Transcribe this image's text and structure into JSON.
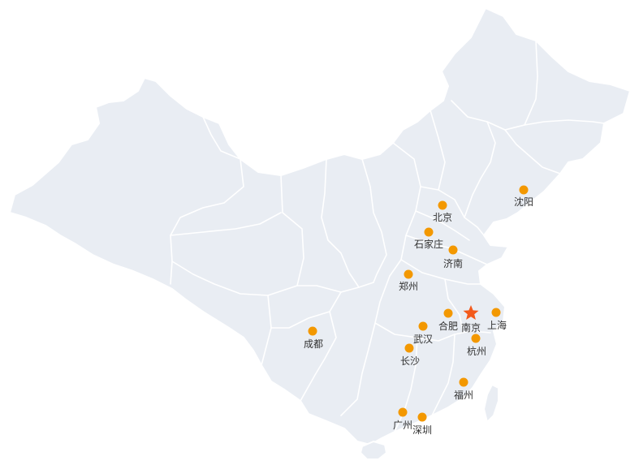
{
  "map": {
    "colors": {
      "land": "#e9edf3",
      "border": "#ffffff",
      "city_dot": "#f39800",
      "capital_star": "#f35a1c",
      "label": "#333333"
    },
    "cities": [
      {
        "key": "beijing",
        "name": "北京",
        "marker": "dot"
      },
      {
        "key": "shenyang",
        "name": "沈阳",
        "marker": "dot"
      },
      {
        "key": "shijiazhuang",
        "name": "石家庄",
        "marker": "dot"
      },
      {
        "key": "jinan",
        "name": "济南",
        "marker": "dot"
      },
      {
        "key": "zhengzhou",
        "name": "郑州",
        "marker": "dot"
      },
      {
        "key": "hefei",
        "name": "合肥",
        "marker": "dot"
      },
      {
        "key": "nanjing",
        "name": "南京",
        "marker": "star"
      },
      {
        "key": "shanghai",
        "name": "上海",
        "marker": "dot"
      },
      {
        "key": "wuhan",
        "name": "武汉",
        "marker": "dot"
      },
      {
        "key": "hangzhou",
        "name": "杭州",
        "marker": "dot"
      },
      {
        "key": "chengdu",
        "name": "成都",
        "marker": "dot"
      },
      {
        "key": "changsha",
        "name": "长沙",
        "marker": "dot"
      },
      {
        "key": "fuzhou",
        "name": "福州",
        "marker": "dot"
      },
      {
        "key": "guangzhou",
        "name": "广州",
        "marker": "dot"
      },
      {
        "key": "shenzhen",
        "name": "深圳",
        "marker": "dot"
      }
    ]
  }
}
